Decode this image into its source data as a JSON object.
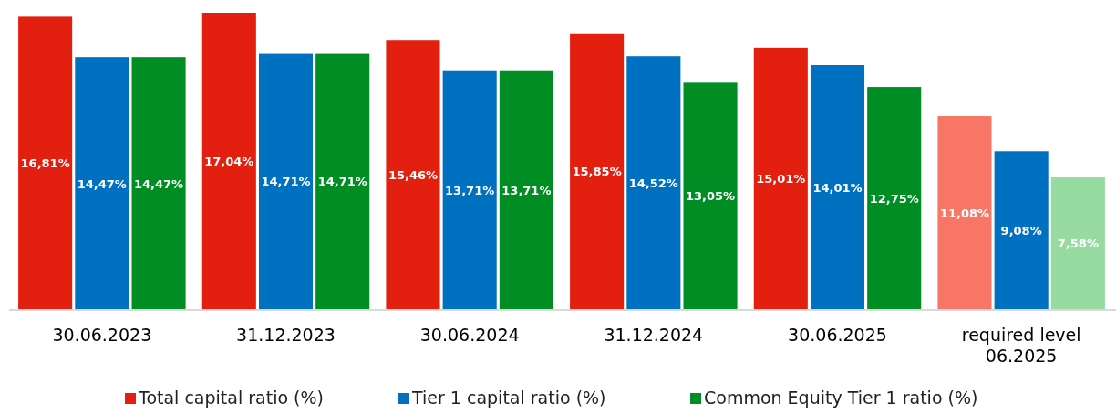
{
  "chart_data": {
    "type": "bar",
    "categories": [
      "30.06.2023",
      "31.12.2023",
      "30.06.2024",
      "31.12.2024",
      "30.06.2025",
      "required level 06.2025"
    ],
    "series": [
      {
        "name": "Total capital ratio (%)",
        "color": "#e32010",
        "colors": [
          "#e32010",
          "#e32010",
          "#e32010",
          "#e32010",
          "#e32010",
          "#f87666"
        ],
        "values": [
          16.81,
          17.04,
          15.46,
          15.85,
          15.01,
          11.08
        ],
        "value_labels": [
          "16,81%",
          "17,04%",
          "15,46%",
          "15,85%",
          "15,01%",
          "11,08%"
        ]
      },
      {
        "name": "Tier 1 capital ratio (%)",
        "color": "#0070c0",
        "colors": [
          "#0070c0",
          "#0070c0",
          "#0070c0",
          "#0070c0",
          "#0070c0",
          "#0070c0"
        ],
        "values": [
          14.47,
          14.71,
          13.71,
          14.52,
          14.01,
          9.08
        ],
        "value_labels": [
          "14,47%",
          "14,71%",
          "13,71%",
          "14,52%",
          "14,01%",
          "9,08%"
        ]
      },
      {
        "name": "Common Equity Tier 1 ratio (%)",
        "color": "#008e24",
        "colors": [
          "#008e24",
          "#008e24",
          "#008e24",
          "#008e24",
          "#008e24",
          "#98dba0"
        ],
        "values": [
          14.47,
          14.71,
          13.71,
          13.05,
          12.75,
          7.58
        ],
        "value_labels": [
          "14,47%",
          "14,71%",
          "13,71%",
          "13,05%",
          "12,75%",
          "7,58%"
        ]
      }
    ],
    "legend": "bottom"
  }
}
